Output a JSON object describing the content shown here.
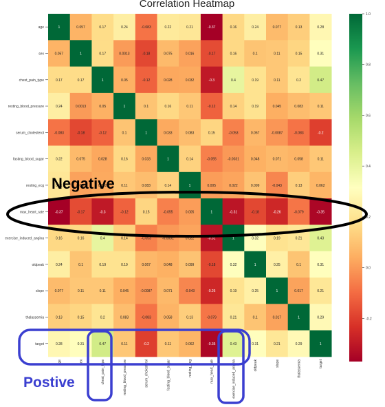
{
  "chart_data": {
    "type": "heatmap",
    "title": "Correlation Heatmap",
    "variables": [
      "age",
      "sex",
      "chest_pain_type",
      "resting_blood_pressure",
      "serum_cholesterol",
      "fasting_blood_sugar",
      "resting_ecg",
      "max_heart_rate",
      "exercise_induced_angina",
      "oldpeak",
      "slope",
      "thalassemia",
      "target"
    ],
    "x_tick_labels": [
      "age",
      "sex",
      "chest_pain_type",
      "resting_blood_pressure",
      "serum_cholesterol",
      "fasting_blood_sugar",
      "resting_ecg",
      "max_heart_rate",
      "exercise_induced_angina",
      "oldpeak",
      "slope",
      "thalassemia",
      "target"
    ],
    "values": [
      [
        1,
        0.057,
        0.17,
        0.24,
        -0.083,
        0.22,
        0.21,
        -0.37,
        0.16,
        0.24,
        0.077,
        0.13,
        0.28
      ],
      [
        0.057,
        1,
        0.17,
        0.0013,
        -0.18,
        0.075,
        0.016,
        -0.17,
        0.16,
        0.1,
        0.11,
        0.15,
        0.31
      ],
      [
        0.17,
        0.17,
        1,
        0.05,
        -0.12,
        0.028,
        0.032,
        -0.3,
        0.4,
        0.19,
        0.11,
        0.2,
        0.47
      ],
      [
        0.24,
        0.0013,
        0.05,
        1,
        0.1,
        0.16,
        0.11,
        -0.12,
        0.14,
        0.19,
        0.045,
        0.083,
        0.11
      ],
      [
        -0.083,
        -0.18,
        -0.12,
        0.1,
        1,
        0.033,
        0.083,
        0.15,
        -0.053,
        0.067,
        -0.0087,
        -0.083,
        -0.2
      ],
      [
        0.22,
        0.075,
        0.028,
        0.16,
        0.033,
        1,
        0.14,
        -0.055,
        -0.0031,
        0.048,
        0.071,
        0.058,
        0.11
      ],
      [
        0.21,
        0.016,
        0.032,
        0.11,
        0.083,
        0.14,
        1,
        0.005,
        0.022,
        0.099,
        -0.043,
        0.13,
        0.062
      ],
      [
        -0.37,
        -0.17,
        -0.3,
        -0.12,
        0.15,
        -0.055,
        0.005,
        1,
        -0.31,
        -0.18,
        -0.26,
        -0.079,
        -0.35
      ],
      [
        0.16,
        0.16,
        0.4,
        0.14,
        -0.053,
        -0.0031,
        0.022,
        -0.31,
        1,
        0.32,
        0.19,
        0.21,
        0.43
      ],
      [
        0.24,
        0.1,
        0.19,
        0.19,
        0.067,
        0.048,
        0.099,
        -0.18,
        0.32,
        1,
        0.25,
        0.1,
        0.31
      ],
      [
        0.077,
        0.11,
        0.11,
        0.045,
        -0.0087,
        0.071,
        -0.043,
        -0.26,
        0.19,
        0.25,
        1,
        0.017,
        0.21
      ],
      [
        0.13,
        0.15,
        0.2,
        0.083,
        -0.083,
        0.058,
        0.13,
        -0.079,
        0.21,
        0.1,
        0.017,
        1,
        0.29
      ],
      [
        0.28,
        0.31,
        0.47,
        0.11,
        -0.2,
        0.11,
        0.062,
        -0.35,
        0.43,
        0.31,
        0.21,
        0.29,
        1
      ]
    ],
    "vmin": -0.37,
    "vmax": 1,
    "colormap": [
      "#a50026",
      "#d73027",
      "#f46d43",
      "#fdae61",
      "#fee08b",
      "#ffffbf",
      "#d9ef8b",
      "#a6d96a",
      "#66bd63",
      "#1a9850",
      "#006837"
    ],
    "colorbar_ticks": [
      1.0,
      0.8,
      0.6,
      0.4,
      0.2,
      0.0,
      -0.2
    ],
    "colorbar_tick_labels": [
      "1.0",
      "0.8",
      "0.6",
      "0.4",
      "0.2",
      "0.0",
      "-0.2"
    ]
  },
  "annotations": {
    "negative_label": "Negative",
    "positive_label": "Postive",
    "negative_color": "#000000",
    "positive_color": "#3b3fd0"
  }
}
